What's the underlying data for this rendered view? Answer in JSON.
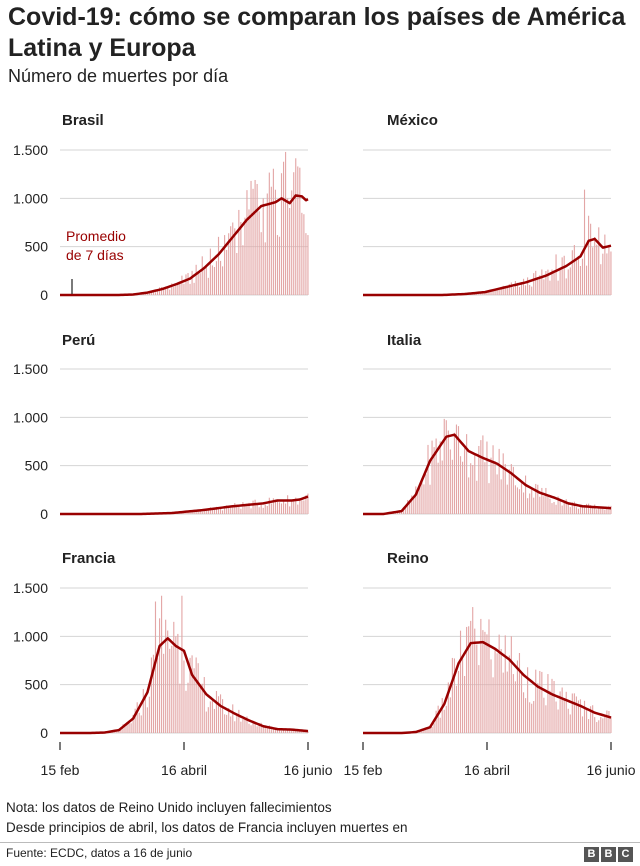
{
  "header": {
    "title": "Covid-19: cómo se comparan los países de América Latina y Europa",
    "subtitle": "Número de muertes por día"
  },
  "legend": {
    "line1": "Promedio",
    "line2": "de 7 días"
  },
  "footer": {
    "note1": "Nota: los datos de Reino Unido incluyen fallecimientos",
    "note2": "Desde principios de abril, los datos de Francia incluyen muertes en",
    "source": "Fuente: ECDC, datos a 16 de junio",
    "logo": [
      "B",
      "B",
      "C"
    ]
  },
  "colors": {
    "line": "#990000",
    "bars": "#e3a6a6",
    "grid": "#d4d4d4",
    "axis": "#222222"
  },
  "chart_data": {
    "type": "bar",
    "ylim": [
      0,
      1500
    ],
    "yticks": [
      0,
      500,
      1000,
      1500
    ],
    "ytick_labels": [
      "0",
      "500",
      "1.000",
      "1.500"
    ],
    "x_ticks": [
      {
        "date": "2020-02-15",
        "label": "15 feb"
      },
      {
        "date": "2020-04-16",
        "label": "16 abril"
      },
      {
        "date": "2020-06-16",
        "label": "16 junio"
      }
    ],
    "x_range": [
      "2020-02-15",
      "2020-06-16"
    ],
    "panels": [
      {
        "name": "Brasil",
        "line_7day": [
          [
            "2020-02-15",
            0
          ],
          [
            "2020-03-15",
            0
          ],
          [
            "2020-03-22",
            5
          ],
          [
            "2020-03-29",
            25
          ],
          [
            "2020-04-05",
            60
          ],
          [
            "2020-04-12",
            110
          ],
          [
            "2020-04-19",
            170
          ],
          [
            "2020-04-26",
            280
          ],
          [
            "2020-05-03",
            420
          ],
          [
            "2020-05-10",
            600
          ],
          [
            "2020-05-17",
            780
          ],
          [
            "2020-05-24",
            920
          ],
          [
            "2020-05-31",
            960
          ],
          [
            "2020-06-03",
            1000
          ],
          [
            "2020-06-07",
            950
          ],
          [
            "2020-06-10",
            1030
          ],
          [
            "2020-06-13",
            1020
          ],
          [
            "2020-06-15",
            980
          ],
          [
            "2020-06-16",
            990
          ]
        ],
        "daily": [
          [
            "2020-04-10",
            120
          ],
          [
            "2020-04-15",
            200
          ],
          [
            "2020-04-20",
            250
          ],
          [
            "2020-04-25",
            400
          ],
          [
            "2020-04-29",
            480
          ],
          [
            "2020-05-02",
            350
          ],
          [
            "2020-05-06",
            620
          ],
          [
            "2020-05-10",
            750
          ],
          [
            "2020-05-13",
            880
          ],
          [
            "2020-05-16",
            800
          ],
          [
            "2020-05-19",
            1180
          ],
          [
            "2020-05-21",
            1190
          ],
          [
            "2020-05-24",
            650
          ],
          [
            "2020-05-27",
            1050
          ],
          [
            "2020-05-29",
            1120
          ],
          [
            "2020-06-01",
            620
          ],
          [
            "2020-06-03",
            1260
          ],
          [
            "2020-06-05",
            1480
          ],
          [
            "2020-06-07",
            900
          ],
          [
            "2020-06-09",
            1270
          ],
          [
            "2020-06-11",
            1330
          ],
          [
            "2020-06-13",
            850
          ],
          [
            "2020-06-15",
            640
          ],
          [
            "2020-06-16",
            620
          ]
        ]
      },
      {
        "name": "México",
        "line_7day": [
          [
            "2020-02-15",
            0
          ],
          [
            "2020-03-25",
            0
          ],
          [
            "2020-04-05",
            10
          ],
          [
            "2020-04-15",
            30
          ],
          [
            "2020-04-25",
            80
          ],
          [
            "2020-05-05",
            130
          ],
          [
            "2020-05-15",
            200
          ],
          [
            "2020-05-25",
            300
          ],
          [
            "2020-06-01",
            400
          ],
          [
            "2020-06-05",
            560
          ],
          [
            "2020-06-08",
            580
          ],
          [
            "2020-06-12",
            490
          ],
          [
            "2020-06-16",
            510
          ]
        ],
        "daily": [
          [
            "2020-05-10",
            250
          ],
          [
            "2020-05-20",
            420
          ],
          [
            "2020-05-30",
            360
          ],
          [
            "2020-06-01",
            300
          ],
          [
            "2020-06-03",
            1090
          ],
          [
            "2020-06-05",
            820
          ],
          [
            "2020-06-08",
            600
          ],
          [
            "2020-06-10",
            700
          ],
          [
            "2020-06-14",
            430
          ],
          [
            "2020-06-16",
            450
          ]
        ]
      },
      {
        "name": "Perú",
        "line_7day": [
          [
            "2020-02-15",
            0
          ],
          [
            "2020-03-25",
            0
          ],
          [
            "2020-04-10",
            10
          ],
          [
            "2020-04-25",
            40
          ],
          [
            "2020-05-10",
            80
          ],
          [
            "2020-05-25",
            110
          ],
          [
            "2020-06-01",
            140
          ],
          [
            "2020-06-08",
            140
          ],
          [
            "2020-06-12",
            150
          ],
          [
            "2020-06-16",
            180
          ]
        ],
        "daily": []
      },
      {
        "name": "Italia",
        "line_7day": [
          [
            "2020-02-15",
            0
          ],
          [
            "2020-02-25",
            0
          ],
          [
            "2020-03-05",
            30
          ],
          [
            "2020-03-12",
            200
          ],
          [
            "2020-03-19",
            550
          ],
          [
            "2020-03-27",
            800
          ],
          [
            "2020-03-31",
            820
          ],
          [
            "2020-04-07",
            650
          ],
          [
            "2020-04-14",
            580
          ],
          [
            "2020-04-21",
            520
          ],
          [
            "2020-04-28",
            420
          ],
          [
            "2020-05-05",
            300
          ],
          [
            "2020-05-12",
            220
          ],
          [
            "2020-05-19",
            170
          ],
          [
            "2020-05-26",
            110
          ],
          [
            "2020-06-02",
            80
          ],
          [
            "2020-06-09",
            70
          ],
          [
            "2020-06-16",
            60
          ]
        ],
        "daily": [
          [
            "2020-03-27",
            970
          ],
          [
            "2020-03-31",
            840
          ],
          [
            "2020-04-05",
            680
          ],
          [
            "2020-04-10",
            610
          ]
        ]
      },
      {
        "name": "Francia",
        "line_7day": [
          [
            "2020-02-15",
            0
          ],
          [
            "2020-03-01",
            0
          ],
          [
            "2020-03-08",
            5
          ],
          [
            "2020-03-15",
            30
          ],
          [
            "2020-03-22",
            150
          ],
          [
            "2020-03-29",
            420
          ],
          [
            "2020-04-04",
            900
          ],
          [
            "2020-04-08",
            980
          ],
          [
            "2020-04-12",
            900
          ],
          [
            "2020-04-16",
            850
          ],
          [
            "2020-04-20",
            600
          ],
          [
            "2020-04-27",
            400
          ],
          [
            "2020-05-04",
            280
          ],
          [
            "2020-05-11",
            200
          ],
          [
            "2020-05-18",
            130
          ],
          [
            "2020-05-25",
            70
          ],
          [
            "2020-06-01",
            40
          ],
          [
            "2020-06-08",
            35
          ],
          [
            "2020-06-16",
            20
          ]
        ],
        "daily": [
          [
            "2020-04-02",
            1360
          ],
          [
            "2020-04-05",
            1420
          ],
          [
            "2020-04-08",
            1060
          ],
          [
            "2020-04-11",
            1150
          ],
          [
            "2020-04-15",
            1420
          ],
          [
            "2020-04-16",
            750
          ]
        ]
      },
      {
        "name": "Reino",
        "line_7day": [
          [
            "2020-02-15",
            0
          ],
          [
            "2020-03-05",
            0
          ],
          [
            "2020-03-12",
            10
          ],
          [
            "2020-03-19",
            60
          ],
          [
            "2020-03-26",
            300
          ],
          [
            "2020-04-02",
            720
          ],
          [
            "2020-04-08",
            930
          ],
          [
            "2020-04-14",
            940
          ],
          [
            "2020-04-20",
            870
          ],
          [
            "2020-04-27",
            760
          ],
          [
            "2020-05-04",
            600
          ],
          [
            "2020-05-11",
            480
          ],
          [
            "2020-05-18",
            400
          ],
          [
            "2020-05-25",
            340
          ],
          [
            "2020-06-01",
            280
          ],
          [
            "2020-06-08",
            210
          ],
          [
            "2020-06-16",
            160
          ]
        ],
        "daily": [
          [
            "2020-04-08",
            1160
          ],
          [
            "2020-04-10",
            1080
          ],
          [
            "2020-04-13",
            1180
          ],
          [
            "2020-04-16",
            1020
          ],
          [
            "2020-04-20",
            880
          ],
          [
            "2020-04-25",
            1010
          ],
          [
            "2020-05-01",
            750
          ],
          [
            "2020-05-06",
            680
          ]
        ]
      }
    ]
  }
}
